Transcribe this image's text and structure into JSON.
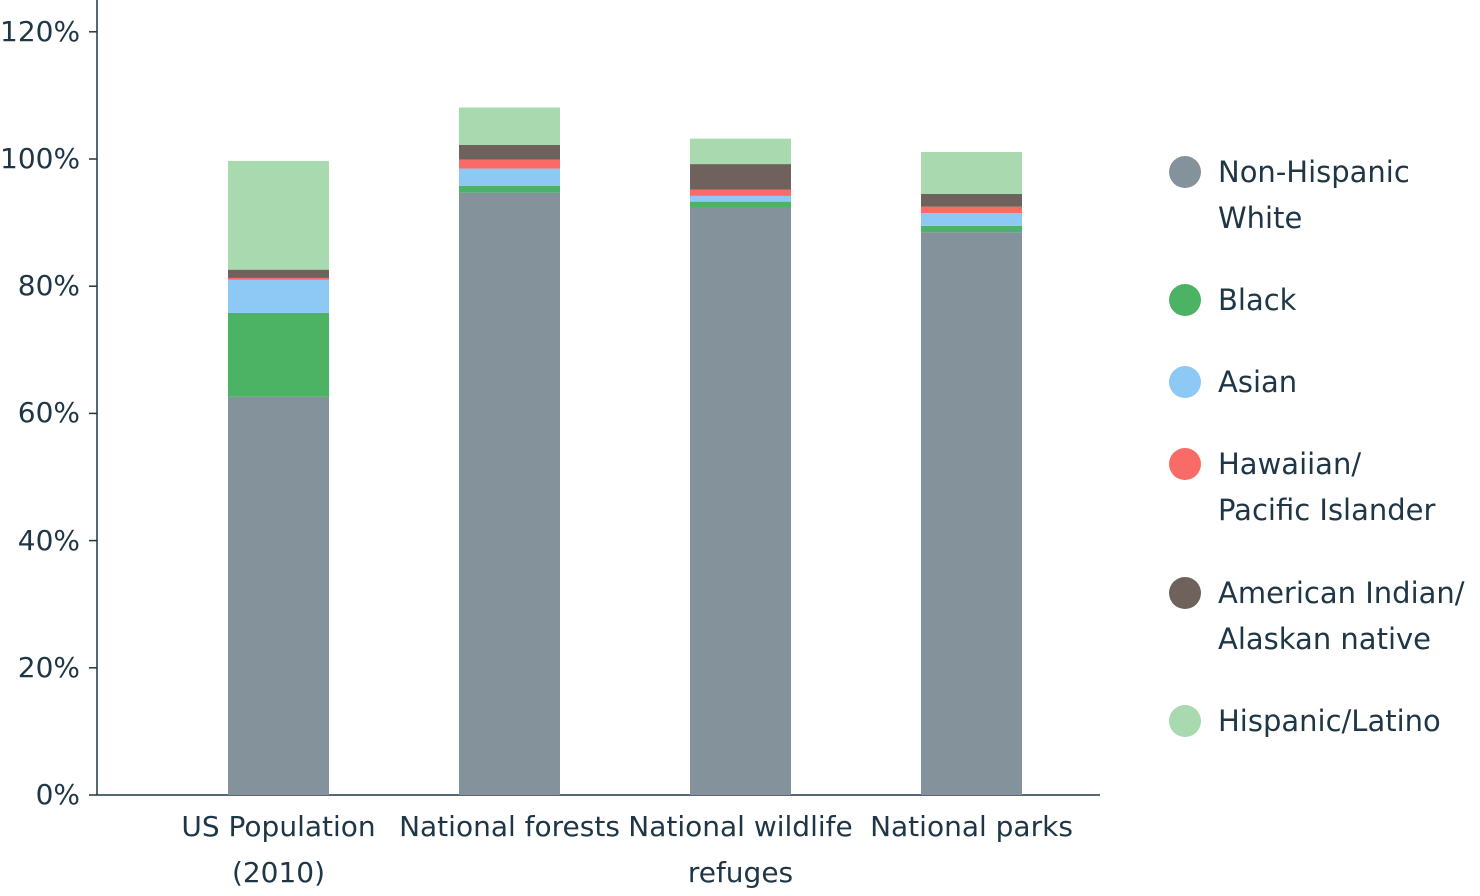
{
  "chart_data": {
    "type": "stacked_bar",
    "categories": [
      "US Population\n(2010)",
      "National forests",
      "National wildlife\nrefuges",
      "National parks"
    ],
    "series": [
      {
        "name": "Non-Hispanic\nWhite",
        "color": "#84929b",
        "values": [
          62.6,
          94.7,
          92.3,
          88.5
        ]
      },
      {
        "name": "Black",
        "color": "#4db364",
        "values": [
          13.2,
          1.1,
          1.0,
          1.0
        ]
      },
      {
        "name": "Asian",
        "color": "#8ec9f5",
        "values": [
          5.2,
          2.7,
          0.9,
          2.0
        ]
      },
      {
        "name": "Hawaiian/\nPacific Islander",
        "color": "#f96b67",
        "values": [
          0.3,
          1.4,
          1.0,
          1.0
        ]
      },
      {
        "name": "American Indian/\nAlaskan native",
        "color": "#6f615b",
        "values": [
          1.3,
          2.3,
          4.0,
          2.0
        ]
      },
      {
        "name": "Hispanic/Latino",
        "color": "#a9d9ae",
        "values": [
          17.1,
          5.9,
          4.0,
          6.6
        ]
      }
    ],
    "ylim": [
      0,
      125
    ],
    "yticks": [
      {
        "value": 0,
        "label": "0%"
      },
      {
        "value": 20,
        "label": "20%"
      },
      {
        "value": 40,
        "label": "40%"
      },
      {
        "value": 60,
        "label": "60%"
      },
      {
        "value": 80,
        "label": "80%"
      },
      {
        "value": 100,
        "label": "100%"
      },
      {
        "value": 120,
        "label": "120%"
      }
    ],
    "legend": "right"
  }
}
